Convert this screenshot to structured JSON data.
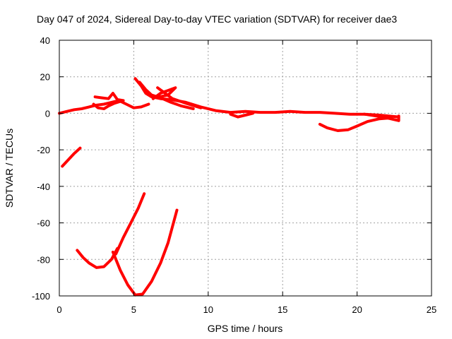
{
  "chart_data": {
    "type": "scatter",
    "title": "Day 047 of 2024, Sidereal Day-to-day VTEC variation (SDTVAR) for receiver dae3",
    "xlabel": "GPS time / hours",
    "ylabel": "SDTVAR / TECUs",
    "xlim": [
      0,
      25
    ],
    "ylim": [
      -100,
      40
    ],
    "xticks": [
      0,
      5,
      10,
      15,
      20,
      25
    ],
    "yticks": [
      40,
      20,
      0,
      -20,
      -40,
      -60,
      -80,
      -100
    ],
    "grid": true,
    "legend": "none",
    "color": "#ff0000",
    "series": [
      {
        "name": "arc-main-early",
        "points": [
          [
            0,
            0
          ],
          [
            0.5,
            1
          ],
          [
            1,
            2
          ],
          [
            1.5,
            2.5
          ],
          [
            2,
            3.5
          ],
          [
            2.5,
            4.5
          ],
          [
            3,
            5
          ],
          [
            3.5,
            6
          ],
          [
            4,
            7
          ],
          [
            4.5,
            5
          ],
          [
            5,
            3
          ],
          [
            5.5,
            3.5
          ],
          [
            6,
            5
          ]
        ]
      },
      {
        "name": "arc-bump-2-4",
        "points": [
          [
            2.4,
            9
          ],
          [
            2.8,
            8.5
          ],
          [
            3.3,
            8
          ],
          [
            3.6,
            11
          ],
          [
            3.9,
            7.5
          ],
          [
            4.3,
            7
          ]
        ]
      },
      {
        "name": "arc-wiggle-2-4",
        "points": [
          [
            2.3,
            5
          ],
          [
            2.6,
            3
          ],
          [
            3,
            2.5
          ],
          [
            3.3,
            4
          ],
          [
            3.7,
            5.5
          ],
          [
            4.1,
            6.5
          ]
        ]
      },
      {
        "name": "arc-peak-5",
        "points": [
          [
            5.1,
            19
          ],
          [
            5.5,
            15
          ],
          [
            5.8,
            11
          ],
          [
            6.2,
            9
          ],
          [
            6.8,
            8
          ],
          [
            7.5,
            7.5
          ],
          [
            8.5,
            6
          ],
          [
            9.5,
            3.5
          ],
          [
            10.5,
            1.5
          ],
          [
            11.5,
            0.5
          ],
          [
            12.5,
            1
          ],
          [
            13.5,
            0.5
          ],
          [
            14.5,
            0.5
          ],
          [
            15.5,
            1
          ],
          [
            16.5,
            0.5
          ],
          [
            17.5,
            0.5
          ],
          [
            18.5,
            0
          ],
          [
            19.5,
            -0.5
          ],
          [
            20.5,
            -0.5
          ],
          [
            21.5,
            -1
          ],
          [
            22.8,
            -2
          ]
        ]
      },
      {
        "name": "arc-peak-5b",
        "points": [
          [
            5.4,
            17
          ],
          [
            5.8,
            13
          ],
          [
            6.2,
            10
          ],
          [
            6.8,
            8.5
          ],
          [
            7.5,
            6
          ],
          [
            8.2,
            4
          ],
          [
            9,
            2.5
          ]
        ]
      },
      {
        "name": "arc-7-8",
        "points": [
          [
            6.3,
            8
          ],
          [
            6.8,
            11
          ],
          [
            7.3,
            12.5
          ],
          [
            7.8,
            14
          ],
          [
            7.3,
            10
          ],
          [
            6.7,
            9
          ]
        ]
      },
      {
        "name": "arc-6-7b",
        "points": [
          [
            6.6,
            14
          ],
          [
            7.1,
            11
          ],
          [
            7.6,
            8
          ],
          [
            8.5,
            5.5
          ],
          [
            9.5,
            3
          ]
        ]
      },
      {
        "name": "arc-12",
        "points": [
          [
            11.5,
            -0.5
          ],
          [
            12,
            -2
          ],
          [
            12.5,
            -1
          ],
          [
            13,
            0
          ]
        ]
      },
      {
        "name": "arc-dip-19",
        "points": [
          [
            17.5,
            -6
          ],
          [
            18,
            -8
          ],
          [
            18.7,
            -9.5
          ],
          [
            19.4,
            -9
          ],
          [
            20,
            -7
          ],
          [
            20.7,
            -4.5
          ],
          [
            21.5,
            -3
          ],
          [
            22.3,
            -2.5
          ]
        ]
      },
      {
        "name": "arc-22",
        "points": [
          [
            20.5,
            -0.5
          ],
          [
            21.3,
            -1.5
          ],
          [
            22,
            -2.5
          ],
          [
            22.8,
            -4
          ],
          [
            22.8,
            -1.5
          ]
        ]
      },
      {
        "name": "arc-negative-short",
        "points": [
          [
            0.2,
            -29
          ],
          [
            0.6,
            -25.5
          ],
          [
            1,
            -22
          ],
          [
            1.4,
            -19
          ]
        ]
      },
      {
        "name": "arc-deep-2-5",
        "points": [
          [
            1.2,
            -75
          ],
          [
            1.6,
            -79
          ],
          [
            2,
            -82
          ],
          [
            2.5,
            -84.5
          ],
          [
            3,
            -84
          ],
          [
            3.5,
            -80
          ],
          [
            3.9,
            -74
          ]
        ]
      },
      {
        "name": "arc-deep-4-8",
        "points": [
          [
            3.6,
            -76
          ],
          [
            4.1,
            -86
          ],
          [
            4.6,
            -94
          ],
          [
            5.1,
            -99.5
          ],
          [
            5.6,
            -99
          ],
          [
            6.2,
            -92
          ],
          [
            6.8,
            -82
          ],
          [
            7.3,
            -71
          ],
          [
            7.9,
            -53
          ]
        ]
      },
      {
        "name": "arc-rising-4-6",
        "points": [
          [
            3.8,
            -77
          ],
          [
            4.3,
            -68
          ],
          [
            4.8,
            -60
          ],
          [
            5.3,
            -52
          ],
          [
            5.7,
            -44
          ]
        ]
      }
    ]
  }
}
